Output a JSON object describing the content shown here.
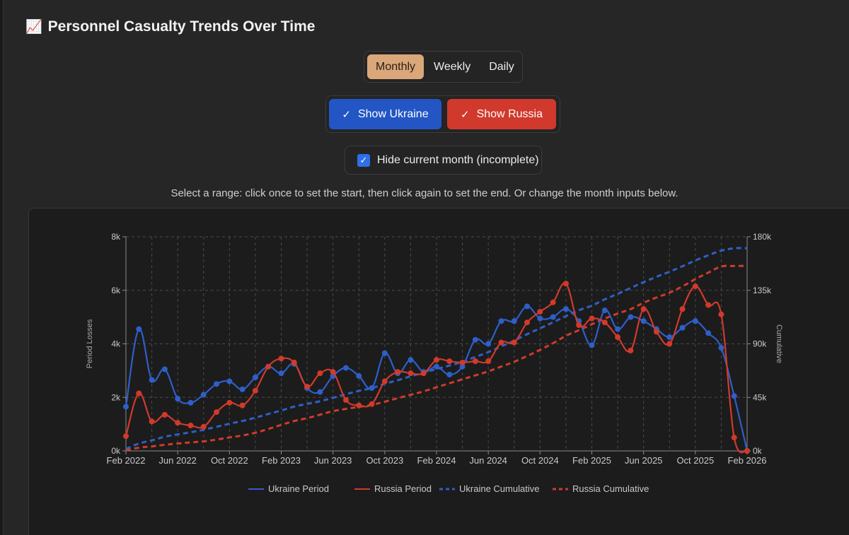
{
  "header": {
    "icon": "chart-increasing-icon",
    "icon_glyph": "📈",
    "title": "Personnel Casualty Trends Over Time"
  },
  "granularity": {
    "options": [
      "Monthly",
      "Weekly",
      "Daily"
    ],
    "selected": "Monthly"
  },
  "toggles": {
    "ukraine_label": "Show Ukraine",
    "russia_label": "Show Russia",
    "check_glyph": "✓"
  },
  "hide_current": {
    "label": "Hide current month (incomplete)",
    "checked": true
  },
  "hint": "Select a range: click once to set the start, then click again to set the end. Or change the month inputs below.",
  "colors": {
    "ukraine": "#2e5fc9",
    "russia": "#d13a2b"
  },
  "chart_data": {
    "type": "line",
    "x": [
      "Feb 2022",
      "Mar 2022",
      "Apr 2022",
      "May 2022",
      "Jun 2022",
      "Jul 2022",
      "Aug 2022",
      "Sep 2022",
      "Oct 2022",
      "Nov 2022",
      "Dec 2022",
      "Jan 2023",
      "Feb 2023",
      "Mar 2023",
      "Apr 2023",
      "May 2023",
      "Jun 2023",
      "Jul 2023",
      "Aug 2023",
      "Sep 2023",
      "Oct 2023",
      "Nov 2023",
      "Dec 2023",
      "Jan 2024",
      "Feb 2024",
      "Mar 2024",
      "Apr 2024",
      "May 2024",
      "Jun 2024",
      "Jul 2024",
      "Aug 2024",
      "Sep 2024",
      "Oct 2024",
      "Nov 2024",
      "Dec 2024",
      "Jan 2025",
      "Feb 2025",
      "Mar 2025",
      "Apr 2025",
      "May 2025",
      "Jun 2025",
      "Jul 2025",
      "Aug 2025",
      "Sep 2025",
      "Oct 2025",
      "Nov 2025",
      "Dec 2025",
      "Jan 2026",
      "Feb 2026"
    ],
    "x_ticks": [
      "Feb 2022",
      "Jun 2022",
      "Oct 2022",
      "Feb 2023",
      "Jun 2023",
      "Oct 2023",
      "Feb 2024",
      "Jun 2024",
      "Oct 2024",
      "Feb 2025",
      "Jun 2025",
      "Oct 2025",
      "Feb 2026"
    ],
    "series": [
      {
        "name": "Ukraine Period",
        "axis": "left",
        "style": "solid",
        "values": [
          1650,
          4550,
          2650,
          3050,
          1950,
          1800,
          2100,
          2500,
          2600,
          2300,
          2750,
          3150,
          2900,
          3250,
          2350,
          2200,
          2800,
          3100,
          2800,
          2350,
          3650,
          2900,
          3400,
          2950,
          3150,
          2850,
          3150,
          4150,
          4000,
          4850,
          4850,
          5400,
          4950,
          5000,
          5300,
          4850,
          3950,
          5250,
          4550,
          5000,
          4850,
          4550,
          4250,
          4600,
          4850,
          4400,
          3850,
          2050,
          0
        ]
      },
      {
        "name": "Russia Period",
        "axis": "left",
        "style": "solid",
        "values": [
          550,
          2150,
          1100,
          1350,
          1050,
          950,
          900,
          1450,
          1800,
          1700,
          2250,
          3150,
          3450,
          3300,
          2400,
          2900,
          2950,
          1900,
          1700,
          1750,
          2600,
          2950,
          2900,
          2900,
          3400,
          3350,
          3300,
          3350,
          3350,
          4050,
          4050,
          4800,
          5200,
          5550,
          6250,
          4700,
          4950,
          4800,
          4250,
          3750,
          5300,
          4450,
          4000,
          5300,
          6150,
          5450,
          5100,
          500,
          0
        ]
      },
      {
        "name": "Ukraine Cumulative",
        "axis": "right",
        "style": "dashed",
        "values": [
          1650,
          6200,
          8850,
          11900,
          13850,
          15650,
          17750,
          20250,
          22850,
          25150,
          27900,
          31050,
          33950,
          37200,
          39550,
          41750,
          44550,
          47650,
          50450,
          52800,
          56450,
          59350,
          62750,
          65700,
          68850,
          71700,
          74850,
          79000,
          83000,
          87850,
          92700,
          98100,
          103050,
          108050,
          113350,
          118200,
          122150,
          127400,
          131950,
          136950,
          141800,
          146350,
          150600,
          155200,
          160050,
          164450,
          168300,
          170350,
          170350
        ]
      },
      {
        "name": "Russia Cumulative",
        "axis": "right",
        "style": "dashed",
        "values": [
          550,
          2700,
          3800,
          5150,
          6200,
          7150,
          8050,
          9500,
          11300,
          13000,
          15250,
          18400,
          21850,
          25150,
          27550,
          30450,
          33400,
          35300,
          37000,
          38750,
          41350,
          44300,
          47200,
          50100,
          53500,
          56850,
          60150,
          63500,
          66850,
          70900,
          74950,
          79750,
          84950,
          90500,
          96750,
          101450,
          106400,
          111200,
          115450,
          119200,
          124500,
          128950,
          132950,
          138250,
          144400,
          149850,
          154950,
          155450,
          155450
        ]
      }
    ],
    "y_left": {
      "label": "Period Losses",
      "min": 0,
      "max": 8000,
      "ticks": [
        "0k",
        "2k",
        "4k",
        "6k",
        "8k"
      ]
    },
    "y_right": {
      "label": "Cumulative",
      "min": 0,
      "max": 180000,
      "ticks": [
        "0k",
        "45k",
        "90k",
        "135k",
        "180k"
      ]
    },
    "grid": true,
    "legend_position": "bottom"
  }
}
